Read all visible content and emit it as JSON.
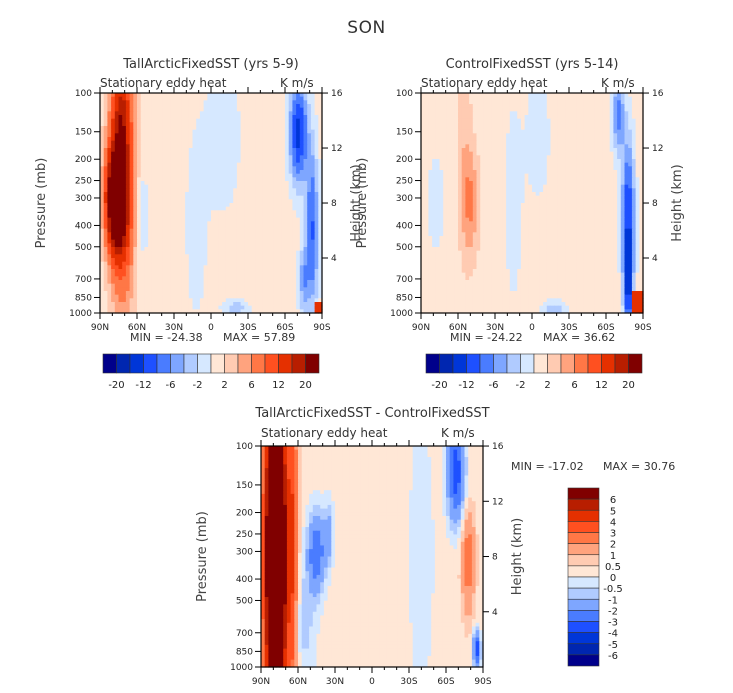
{
  "figure_title": "SON",
  "chart_data": [
    {
      "type": "heatmap",
      "title": "TallArcticFixedSST (yrs 5-9)",
      "left_string": "Stationary eddy heat",
      "right_string": "K m/s",
      "xlabel": "",
      "ylabel": "Pressure (mb)",
      "ylabel_right": "Height (km)",
      "x_ticks": [
        "90N",
        "60N",
        "30N",
        "0",
        "30S",
        "60S",
        "90S"
      ],
      "x_tick_values": [
        90,
        60,
        30,
        0,
        -30,
        -60,
        -90
      ],
      "y_ticks": [
        "100",
        "150",
        "200",
        "250",
        "300",
        "400",
        "500",
        "700",
        "850",
        "1000"
      ],
      "y_tick_values": [
        100,
        150,
        200,
        250,
        300,
        400,
        500,
        700,
        850,
        1000
      ],
      "y_right_ticks": [
        "16",
        "12",
        "8",
        "4"
      ],
      "y_right_tick_values": [
        16,
        12,
        8,
        4
      ],
      "xlim": [
        90,
        -90
      ],
      "ylim": [
        1000,
        100
      ],
      "min_label": "MIN = -24.38",
      "max_label": "MAX = 57.89",
      "min": -24.38,
      "max": 57.89,
      "colorbar": {
        "orientation": "horizontal",
        "labels": [
          "-20",
          "-12",
          "-6",
          "-2",
          "2",
          "6",
          "12",
          "20"
        ],
        "colors": [
          "#00008b",
          "#0026b0",
          "#0036d8",
          "#1e50ff",
          "#4a7cff",
          "#7ea6ff",
          "#b0cbff",
          "#d6e8ff",
          "#ffe7d6",
          "#ffcbb2",
          "#ffa37e",
          "#ff7746",
          "#ff5020",
          "#e53000",
          "#b81e00",
          "#800000"
        ]
      },
      "features": [
        {
          "region": "60N-90N, 250-600 mb",
          "value_range": ">20",
          "description": "strong positive maximum"
        },
        {
          "region": "60S-90S, 100-1000 mb",
          "value_range": "-6 to -20",
          "description": "negative band"
        }
      ]
    },
    {
      "type": "heatmap",
      "title": "ControlFixedSST (yrs 5-14)",
      "left_string": "Stationary eddy heat",
      "right_string": "K m/s",
      "xlabel": "",
      "ylabel": "Pressure (mb)",
      "ylabel_right": "Height (km)",
      "x_ticks": [
        "90N",
        "60N",
        "30N",
        "0",
        "30S",
        "60S",
        "90S"
      ],
      "x_tick_values": [
        90,
        60,
        30,
        0,
        -30,
        -60,
        -90
      ],
      "y_ticks": [
        "100",
        "150",
        "200",
        "250",
        "300",
        "400",
        "500",
        "700",
        "850",
        "1000"
      ],
      "y_tick_values": [
        100,
        150,
        200,
        250,
        300,
        400,
        500,
        700,
        850,
        1000
      ],
      "y_right_ticks": [
        "16",
        "12",
        "8",
        "4"
      ],
      "y_right_tick_values": [
        16,
        12,
        8,
        4
      ],
      "xlim": [
        90,
        -90
      ],
      "ylim": [
        1000,
        100
      ],
      "min_label": "MIN = -24.22",
      "max_label": "MAX = 36.62",
      "min": -24.22,
      "max": 36.62,
      "colorbar": {
        "orientation": "horizontal",
        "labels": [
          "-20",
          "-12",
          "-6",
          "-2",
          "2",
          "6",
          "12",
          "20"
        ],
        "colors": [
          "#00008b",
          "#0026b0",
          "#0036d8",
          "#1e50ff",
          "#4a7cff",
          "#7ea6ff",
          "#b0cbff",
          "#d6e8ff",
          "#ffe7d6",
          "#ffcbb2",
          "#ffa37e",
          "#ff7746",
          "#ff5020",
          "#e53000",
          "#b81e00",
          "#800000"
        ]
      },
      "features": [
        {
          "region": "40N-55N, 250-600 mb",
          "value_range": "2 to 6",
          "description": "moderate positive maximum"
        },
        {
          "region": "65S-85S, 250-1000 mb",
          "value_range": "-6 to -20",
          "description": "negative band"
        }
      ]
    },
    {
      "type": "heatmap",
      "title": "TallArcticFixedSST - ControlFixedSST",
      "left_string": "Stationary eddy heat",
      "right_string": "K m/s",
      "xlabel": "",
      "ylabel": "Pressure (mb)",
      "ylabel_right": "Height (km)",
      "x_ticks": [
        "90N",
        "60N",
        "30N",
        "0",
        "30S",
        "60S",
        "90S"
      ],
      "x_tick_values": [
        90,
        60,
        30,
        0,
        -30,
        -60,
        -90
      ],
      "y_ticks": [
        "100",
        "150",
        "200",
        "250",
        "300",
        "400",
        "500",
        "700",
        "850",
        "1000"
      ],
      "y_tick_values": [
        100,
        150,
        200,
        250,
        300,
        400,
        500,
        700,
        850,
        1000
      ],
      "y_right_ticks": [
        "16",
        "12",
        "8",
        "4"
      ],
      "y_right_tick_values": [
        16,
        12,
        8,
        4
      ],
      "xlim": [
        90,
        -90
      ],
      "ylim": [
        1000,
        100
      ],
      "min_label": "MIN = -17.02",
      "max_label": "MAX = 30.76",
      "min": -17.02,
      "max": 30.76,
      "colorbar": {
        "orientation": "vertical",
        "labels": [
          "6",
          "5",
          "4",
          "3",
          "2",
          "1",
          "0.5",
          "0",
          "-0.5",
          "-1",
          "-2",
          "-3",
          "-4",
          "-5",
          "-6"
        ],
        "colors": [
          "#800000",
          "#b81e00",
          "#e53000",
          "#ff5020",
          "#ff7746",
          "#ffa37e",
          "#ffcbb2",
          "#ffe7d6",
          "#d6e8ff",
          "#b0cbff",
          "#7ea6ff",
          "#4a7cff",
          "#1e50ff",
          "#0036d8",
          "#0026b0",
          "#00008b"
        ]
      },
      "features": [
        {
          "region": "65N-90N, 100-1000 mb",
          "value_range": ">6",
          "description": "strong positive difference"
        },
        {
          "region": "35N-55N, 250-600 mb",
          "value_range": "-2 to -4",
          "description": "negative difference"
        },
        {
          "region": "60S-75S, 100-200 mb",
          "value_range": "-2 to -4",
          "description": "negative difference"
        },
        {
          "region": "70S-85S, 250-700 mb",
          "value_range": "1 to 2",
          "description": "positive difference"
        }
      ]
    }
  ]
}
